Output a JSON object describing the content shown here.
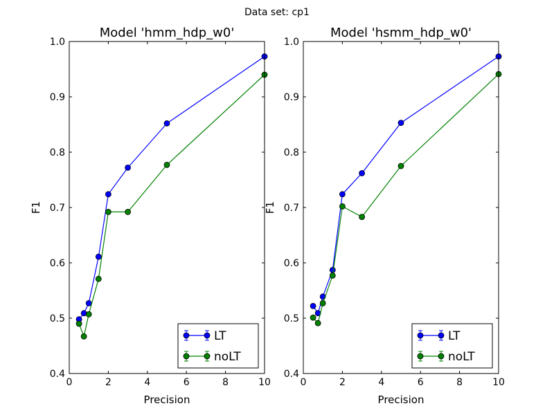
{
  "figure": {
    "suptitle": "Data set: cp1",
    "colors": {
      "LT": "#0000ff",
      "noLT": "#008000",
      "axes": "#000000",
      "background": "#ffffff"
    }
  },
  "chart_data": [
    {
      "type": "line",
      "title": "Model 'hmm_hdp_w0'",
      "xlabel": "Precision",
      "ylabel": "F1",
      "xlim": [
        0,
        10
      ],
      "ylim": [
        0.4,
        1.0
      ],
      "xticks": [
        "0",
        "2",
        "4",
        "6",
        "8",
        "10"
      ],
      "yticks": [
        "0.4",
        "0.5",
        "0.6",
        "0.7",
        "0.8",
        "0.9",
        "1.0"
      ],
      "grid": false,
      "legend": "lower right",
      "series": [
        {
          "name": "LT",
          "color": "#0000ff",
          "x": [
            0.5,
            0.75,
            1,
            1.5,
            2,
            3,
            5,
            10
          ],
          "y": [
            0.498,
            0.509,
            0.527,
            0.611,
            0.724,
            0.772,
            0.852,
            0.973
          ]
        },
        {
          "name": "noLT",
          "color": "#008000",
          "x": [
            0.5,
            0.75,
            1,
            1.5,
            2,
            3,
            5,
            10
          ],
          "y": [
            0.49,
            0.467,
            0.507,
            0.571,
            0.692,
            0.692,
            0.777,
            0.94
          ]
        }
      ]
    },
    {
      "type": "line",
      "title": "Model 'hsmm_hdp_w0'",
      "xlabel": "Precision",
      "ylabel": "F1",
      "xlim": [
        0,
        10
      ],
      "ylim": [
        0.4,
        1.0
      ],
      "xticks": [
        "0",
        "2",
        "4",
        "6",
        "8",
        "10"
      ],
      "yticks": [
        "0.4",
        "0.5",
        "0.6",
        "0.7",
        "0.8",
        "0.9",
        "1.0"
      ],
      "grid": false,
      "legend": "lower right",
      "series": [
        {
          "name": "LT",
          "color": "#0000ff",
          "x": [
            0.5,
            0.75,
            1,
            1.5,
            2,
            3,
            5,
            10
          ],
          "y": [
            0.522,
            0.509,
            0.539,
            0.587,
            0.724,
            0.762,
            0.853,
            0.973
          ]
        },
        {
          "name": "noLT",
          "color": "#008000",
          "x": [
            0.5,
            0.75,
            1,
            1.5,
            2,
            3,
            5,
            10
          ],
          "y": [
            0.501,
            0.491,
            0.527,
            0.577,
            0.702,
            0.683,
            0.775,
            0.941
          ]
        }
      ]
    }
  ]
}
